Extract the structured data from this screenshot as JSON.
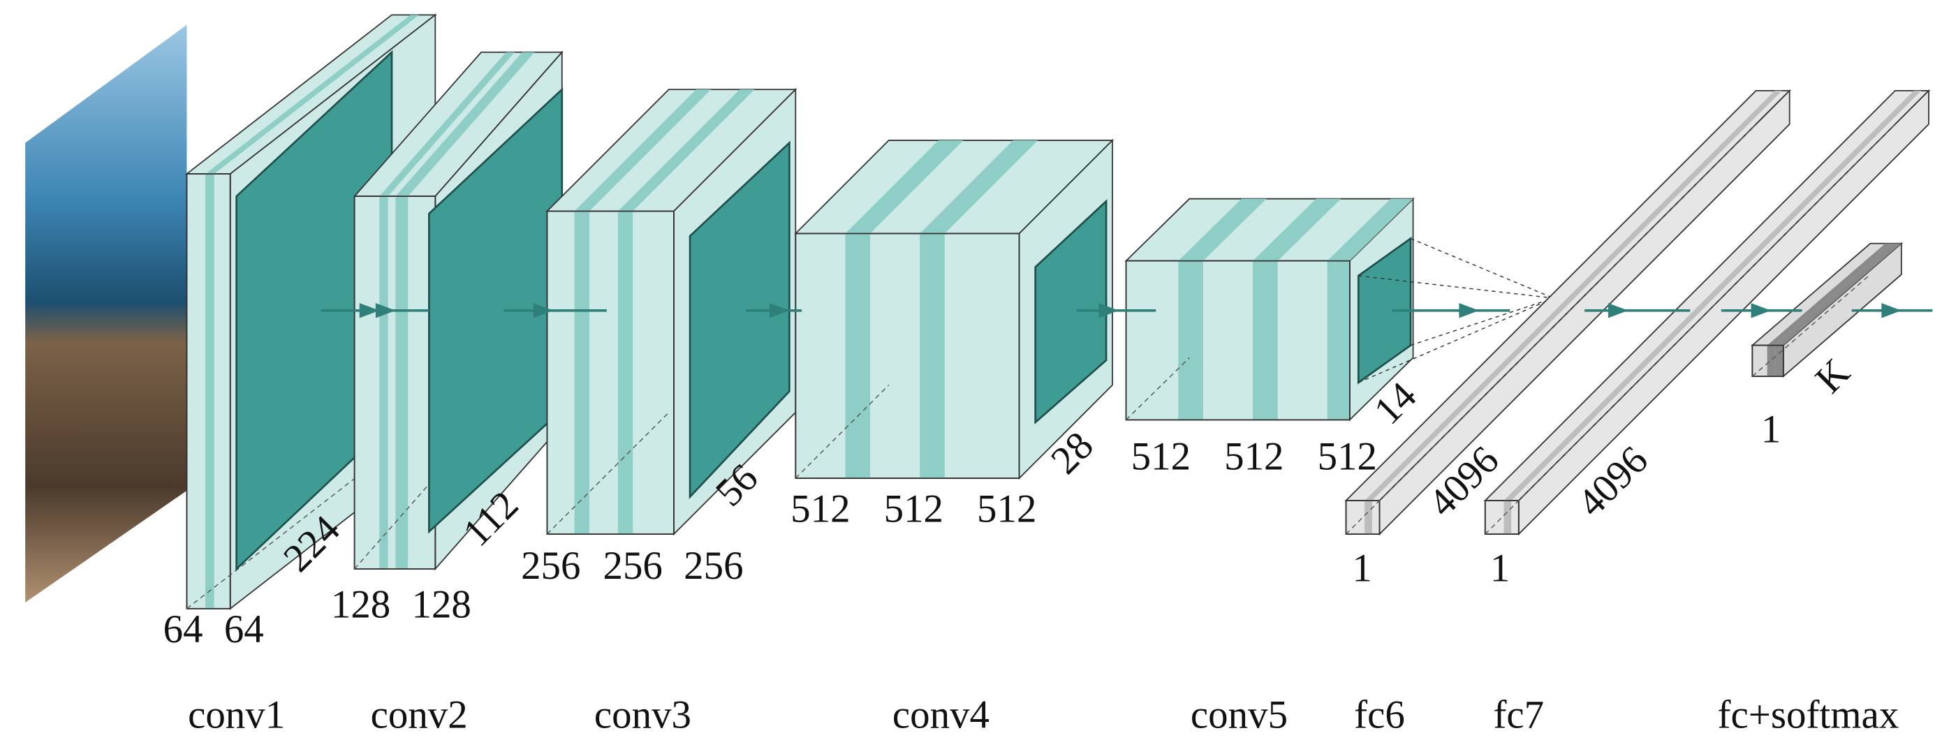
{
  "stages": [
    {
      "name": "conv1",
      "channels": [
        "64",
        "64"
      ],
      "size": "224"
    },
    {
      "name": "conv2",
      "channels": [
        "128",
        "128"
      ],
      "size": "112"
    },
    {
      "name": "conv3",
      "channels": [
        "256",
        "256",
        "256"
      ],
      "size": "56"
    },
    {
      "name": "conv4",
      "channels": [
        "512",
        "512",
        "512"
      ],
      "size": "28"
    },
    {
      "name": "conv5",
      "channels": [
        "512",
        "512",
        "512"
      ],
      "size": "14"
    }
  ],
  "fc_layers": [
    {
      "name": "fc6",
      "width": "1",
      "length": "4096"
    },
    {
      "name": "fc7",
      "width": "1",
      "length": "4096"
    },
    {
      "name": "fc+softmax",
      "width": "1",
      "length": "K"
    }
  ]
}
